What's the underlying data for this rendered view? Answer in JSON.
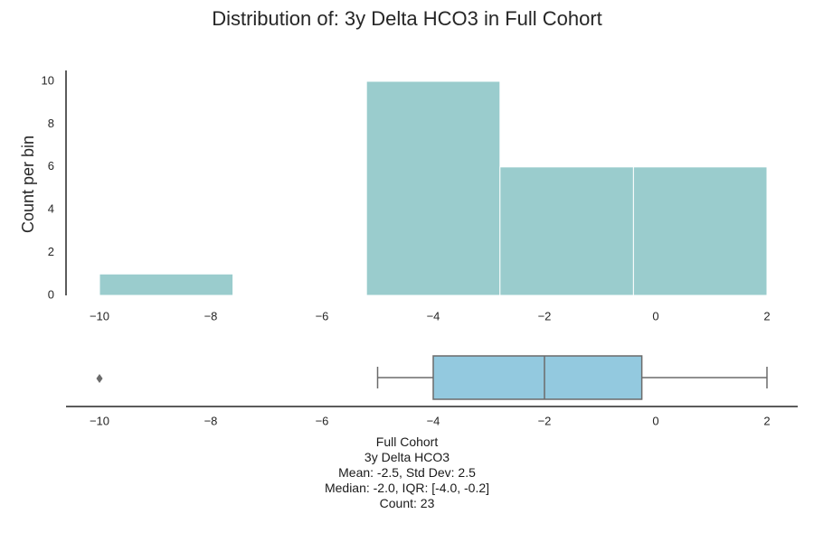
{
  "chart_data": {
    "title": "Distribution of: 3y Delta HCO3 in Full Cohort",
    "histogram": {
      "type": "bar",
      "ylabel": "Count per bin",
      "xlim": [
        -10.6,
        2.6
      ],
      "ylim": [
        0,
        10.5
      ],
      "xticks": [
        -10,
        -8,
        -6,
        -4,
        -2,
        0,
        2
      ],
      "xtick_labels": [
        "−10",
        "−8",
        "−6",
        "−4",
        "−2",
        "0",
        "2"
      ],
      "yticks": [
        0,
        2,
        4,
        6,
        8,
        10
      ],
      "ytick_labels": [
        "0",
        "2",
        "4",
        "6",
        "8",
        "10"
      ],
      "bar_color": "#9acccd",
      "bins": [
        {
          "x0": -10.0,
          "x1": -7.6,
          "count": 1
        },
        {
          "x0": -7.6,
          "x1": -5.2,
          "count": 0
        },
        {
          "x0": -5.2,
          "x1": -2.8,
          "count": 10
        },
        {
          "x0": -2.8,
          "x1": -0.4,
          "count": 6
        },
        {
          "x0": -0.4,
          "x1": 2.0,
          "count": 6
        }
      ]
    },
    "boxplot": {
      "type": "box",
      "whisker_low": -5.0,
      "q1": -4.0,
      "median": -2.0,
      "q3": -0.25,
      "whisker_high": 2.0,
      "outliers": [
        -10.0
      ],
      "box_color": "#93c9df",
      "line_color": "#6b6b6b",
      "xticks": [
        -10,
        -8,
        -6,
        -4,
        -2,
        0,
        2
      ],
      "xtick_labels": [
        "−10",
        "−8",
        "−6",
        "−4",
        "−2",
        "0",
        "2"
      ]
    },
    "stats_lines": [
      "Full Cohort",
      "3y Delta HCO3",
      "Mean: -2.5, Std Dev: 2.5",
      "Median: -2.0, IQR: [-4.0, -0.2]",
      "Count: 23"
    ]
  }
}
